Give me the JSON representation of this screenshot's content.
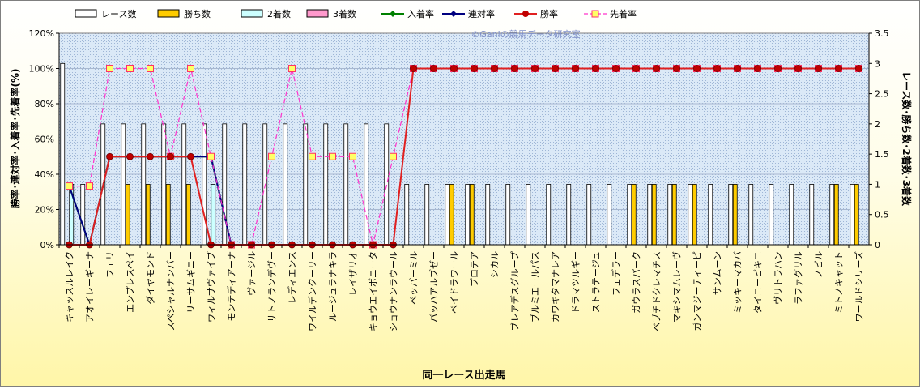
{
  "chart_data": {
    "type": "bar",
    "title": "",
    "watermark": "©Ganiの競馬データ研究室",
    "xlabel": "同一レース出走馬",
    "ylabel_left": "勝率･連対率･入着率･先着率(%)",
    "ylabel_right": "レース数･勝ち数･2着数･3着数",
    "ylim_left": [
      0,
      120
    ],
    "ylim_right": [
      0,
      3.5
    ],
    "yticks_left": [
      "0%",
      "20%",
      "40%",
      "60%",
      "80%",
      "100%",
      "120%"
    ],
    "yticks_right": [
      "0",
      "0.5",
      "1",
      "1.5",
      "2",
      "2.5",
      "3",
      "3.5"
    ],
    "grid": true,
    "legend_position": "top",
    "categories": [
      "キャッスルレイク",
      "アオイレーギーナ",
      "フェリ",
      "エンプレスペイ",
      "ダイヤモンド",
      "スペシャルナンバー",
      "リーサムギニー",
      "ウィルサヴァイブ",
      "モンテディアーナ",
      "ヴァージル",
      "サトノランデヴー",
      "レディエンス",
      "ワイルデンクーリー",
      "ルージュラナキラ",
      "レイザリオ",
      "キョウエイボニータ",
      "ショウナンラウール",
      "ペッパーミル",
      "バッハアルブゼー",
      "ベイドラワール",
      "プロテア",
      "シカル",
      "ブレアデスグループ",
      "ブルミエールパス",
      "カワキタマナレア",
      "ドラマツルギー",
      "ストラテージュ",
      "フェデラー",
      "ガウラスパーク",
      "ベブチドクレマチス",
      "マキシマムレーヴ",
      "ガンマジーティーピ",
      "サンムーン",
      "ミッキーマカバ",
      "タイニーピキニ",
      "ヴリトラハン",
      "ラファグリル",
      "ノビル",
      "ミトノキャット",
      "ワールドシリーズ"
    ],
    "series": [
      {
        "name": "レース数",
        "axis": "right",
        "type": "bar",
        "color": "#ffffff",
        "values": [
          3,
          1,
          2,
          2,
          2,
          2,
          2,
          2,
          2,
          2,
          2,
          2,
          2,
          2,
          2,
          2,
          2,
          1,
          1,
          1,
          1,
          1,
          1,
          1,
          1,
          1,
          1,
          1,
          1,
          1,
          1,
          1,
          1,
          1,
          1,
          1,
          1,
          1,
          1,
          1
        ]
      },
      {
        "name": "勝ち数",
        "axis": "right",
        "type": "bar",
        "color": "#ffcc00",
        "values": [
          0,
          0,
          0,
          1,
          1,
          1,
          1,
          0,
          0,
          0,
          0,
          0,
          0,
          0,
          0,
          0,
          0,
          0,
          0,
          1,
          1,
          0,
          0,
          0,
          0,
          0,
          0,
          0,
          1,
          1,
          1,
          1,
          0,
          1,
          0,
          0,
          0,
          0,
          1,
          1
        ]
      },
      {
        "name": "2着数",
        "axis": "right",
        "type": "bar",
        "color": "#ccffff",
        "values": [
          1,
          0,
          0,
          0,
          0,
          0,
          0,
          1,
          0,
          0,
          0,
          0,
          0,
          0,
          0,
          0,
          0,
          0,
          0,
          0,
          0,
          0,
          0,
          0,
          0,
          0,
          0,
          0,
          0,
          0,
          0,
          0,
          0,
          0,
          0,
          0,
          0,
          0,
          0,
          0
        ]
      },
      {
        "name": "3着数",
        "axis": "right",
        "type": "bar",
        "color": "#ff99cc",
        "values": [
          0,
          0,
          0,
          0,
          0,
          0,
          0,
          0,
          0,
          0,
          0,
          0,
          0,
          0,
          0,
          0,
          0,
          0,
          0,
          0,
          0,
          0,
          0,
          0,
          0,
          0,
          0,
          0,
          0,
          0,
          0,
          0,
          0,
          0,
          0,
          0,
          0,
          0,
          0,
          0
        ]
      },
      {
        "name": "入着率",
        "axis": "left",
        "type": "line",
        "color": "#008000",
        "values": [
          33.3,
          0,
          50,
          50,
          50,
          50,
          50,
          50,
          0,
          null,
          null,
          null,
          null,
          null,
          null,
          null,
          null,
          null,
          null,
          null,
          null,
          null,
          null,
          null,
          null,
          null,
          null,
          null,
          null,
          null,
          null,
          null,
          null,
          null,
          null,
          null,
          null,
          null,
          null,
          null
        ]
      },
      {
        "name": "連対率",
        "axis": "left",
        "type": "line",
        "color": "#000080",
        "values": [
          33.3,
          0,
          50,
          50,
          50,
          50,
          50,
          50,
          0,
          null,
          null,
          null,
          null,
          null,
          null,
          null,
          null,
          null,
          null,
          null,
          null,
          null,
          null,
          null,
          null,
          null,
          null,
          null,
          null,
          null,
          null,
          null,
          null,
          null,
          null,
          null,
          null,
          null,
          null,
          null
        ]
      },
      {
        "name": "勝率",
        "axis": "left",
        "type": "line",
        "color": "#e02020",
        "values": [
          0,
          0,
          50,
          50,
          50,
          50,
          50,
          0,
          0,
          0,
          0,
          0,
          0,
          0,
          0,
          0,
          0,
          100,
          100,
          100,
          100,
          100,
          100,
          100,
          100,
          100,
          100,
          100,
          100,
          100,
          100,
          100,
          100,
          100,
          100,
          100,
          100,
          100,
          100,
          100
        ]
      },
      {
        "name": "先着率",
        "axis": "left",
        "type": "line",
        "color": "#ff33cc",
        "dashed": true,
        "values": [
          33.3,
          33.3,
          100,
          100,
          100,
          50,
          100,
          50,
          0,
          0,
          50,
          100,
          50,
          50,
          50,
          0,
          50,
          100,
          100,
          100,
          100,
          100,
          100,
          100,
          100,
          100,
          100,
          100,
          100,
          100,
          100,
          100,
          100,
          100,
          100,
          100,
          100,
          100,
          100,
          100
        ]
      }
    ]
  }
}
